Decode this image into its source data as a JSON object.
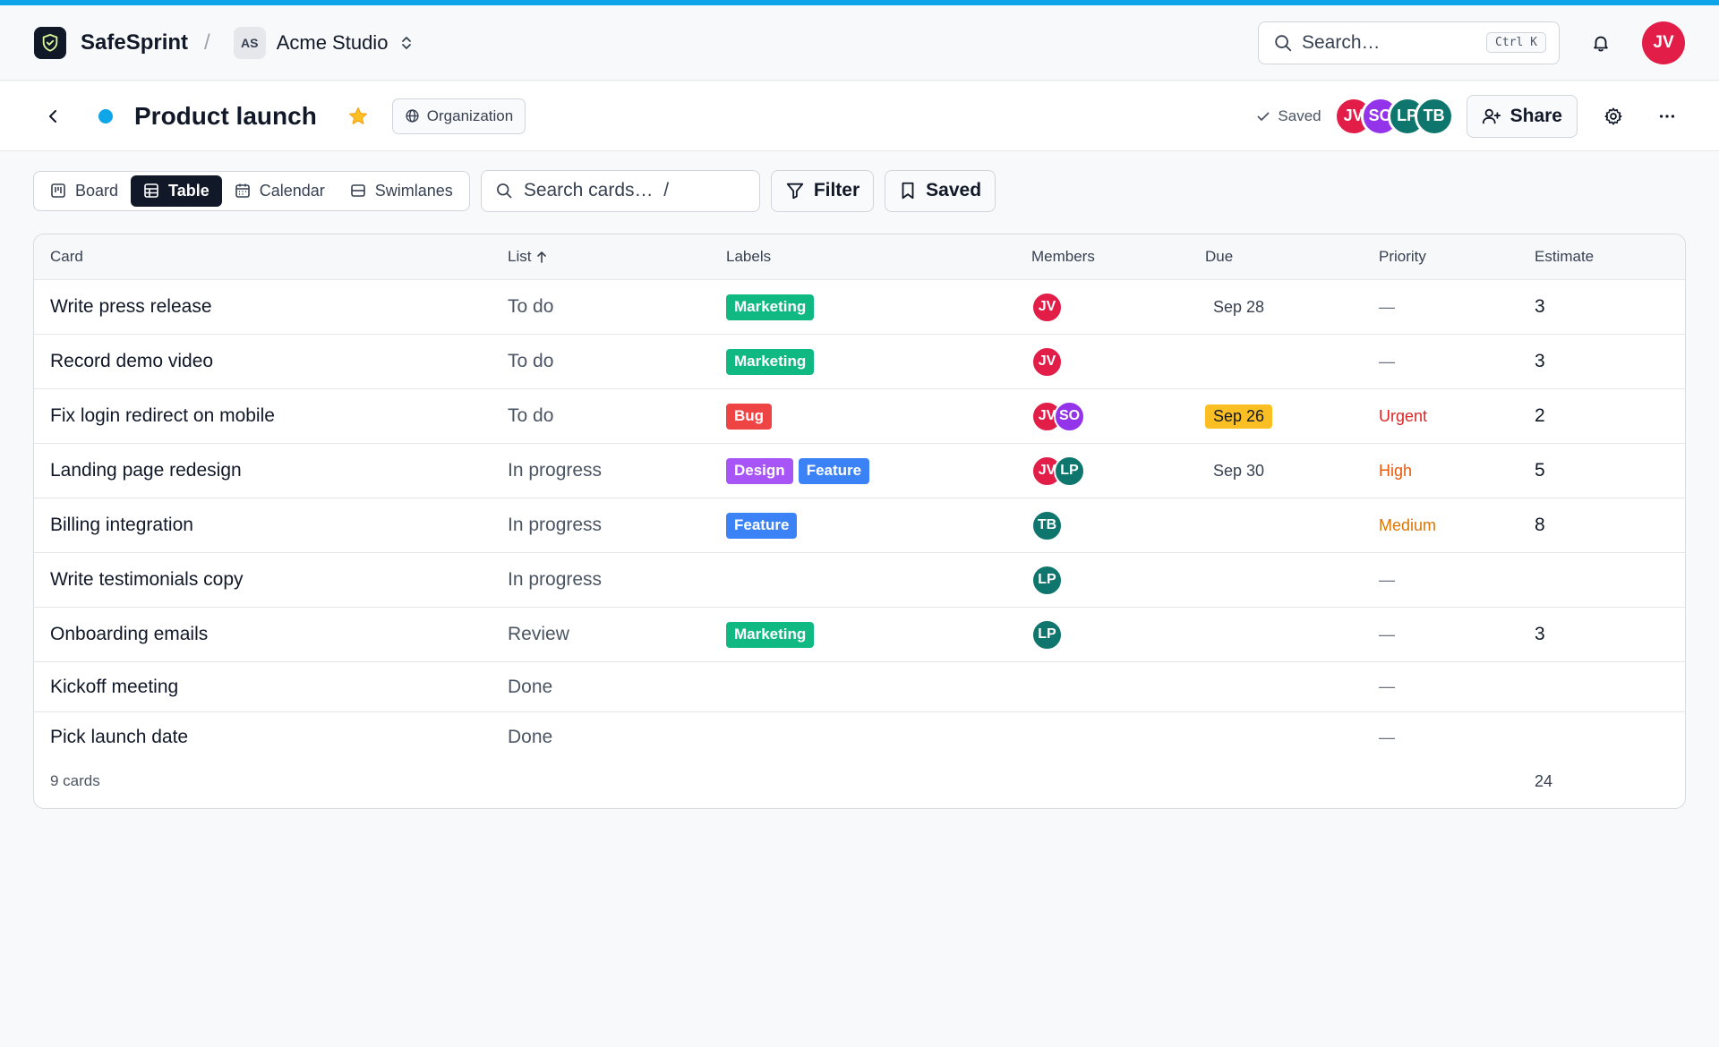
{
  "header": {
    "brand": "SafeSprint",
    "separator": "/",
    "workspace_initials": "AS",
    "workspace_name": "Acme Studio",
    "search_placeholder": "Search…",
    "search_shortcut": "Ctrl K",
    "user_initials": "JV"
  },
  "board": {
    "title": "Product launch",
    "visibility": "Organization",
    "saved_status": "Saved",
    "members": [
      {
        "initials": "JV",
        "color": "#e11d48"
      },
      {
        "initials": "SO",
        "color": "#9333ea"
      },
      {
        "initials": "LP",
        "color": "#0f766e"
      },
      {
        "initials": "TB",
        "color": "#0f766e"
      }
    ],
    "share_label": "Share"
  },
  "toolbar": {
    "views": [
      "Board",
      "Table",
      "Calendar",
      "Swimlanes"
    ],
    "active_view": "Table",
    "search_placeholder": "Search cards…  /",
    "filter_label": "Filter",
    "saved_label": "Saved"
  },
  "colors": {
    "accent": "#0ea5e9",
    "Marketing": "#10b981",
    "Bug": "#ef4444",
    "Design": "#a855f7",
    "Feature": "#3b82f6",
    "Urgent": "#dc2626",
    "High": "#ea580c",
    "Medium": "#d97706"
  },
  "table": {
    "columns": [
      "Card",
      "List",
      "Labels",
      "Members",
      "Due",
      "Priority",
      "Estimate"
    ],
    "sort_column": "List",
    "rows": [
      {
        "card": "Write press release",
        "list": "To do",
        "labels": [
          "Marketing"
        ],
        "members": [
          "JV"
        ],
        "due": "Sep 28",
        "due_urgent": false,
        "priority": "—",
        "estimate": "3"
      },
      {
        "card": "Record demo video",
        "list": "To do",
        "labels": [
          "Marketing"
        ],
        "members": [
          "JV"
        ],
        "due": "",
        "due_urgent": false,
        "priority": "—",
        "estimate": "3"
      },
      {
        "card": "Fix login redirect on mobile",
        "list": "To do",
        "labels": [
          "Bug"
        ],
        "members": [
          "JV",
          "SO"
        ],
        "due": "Sep 26",
        "due_urgent": true,
        "priority": "Urgent",
        "estimate": "2"
      },
      {
        "card": "Landing page redesign",
        "list": "In progress",
        "labels": [
          "Design",
          "Feature"
        ],
        "members": [
          "JV",
          "LP"
        ],
        "due": "Sep 30",
        "due_urgent": false,
        "priority": "High",
        "estimate": "5"
      },
      {
        "card": "Billing integration",
        "list": "In progress",
        "labels": [
          "Feature"
        ],
        "members": [
          "TB"
        ],
        "due": "",
        "due_urgent": false,
        "priority": "Medium",
        "estimate": "8"
      },
      {
        "card": "Write testimonials copy",
        "list": "In progress",
        "labels": [],
        "members": [
          "LP"
        ],
        "due": "",
        "due_urgent": false,
        "priority": "—",
        "estimate": ""
      },
      {
        "card": "Onboarding emails",
        "list": "Review",
        "labels": [
          "Marketing"
        ],
        "members": [
          "LP"
        ],
        "due": "",
        "due_urgent": false,
        "priority": "—",
        "estimate": "3"
      },
      {
        "card": "Kickoff meeting",
        "list": "Done",
        "labels": [],
        "members": [],
        "due": "",
        "due_urgent": false,
        "priority": "—",
        "estimate": ""
      },
      {
        "card": "Pick launch date",
        "list": "Done",
        "labels": [],
        "members": [],
        "due": "",
        "due_urgent": false,
        "priority": "—",
        "estimate": ""
      }
    ],
    "footer": {
      "count": "9 cards",
      "estimate_total": "24"
    }
  }
}
